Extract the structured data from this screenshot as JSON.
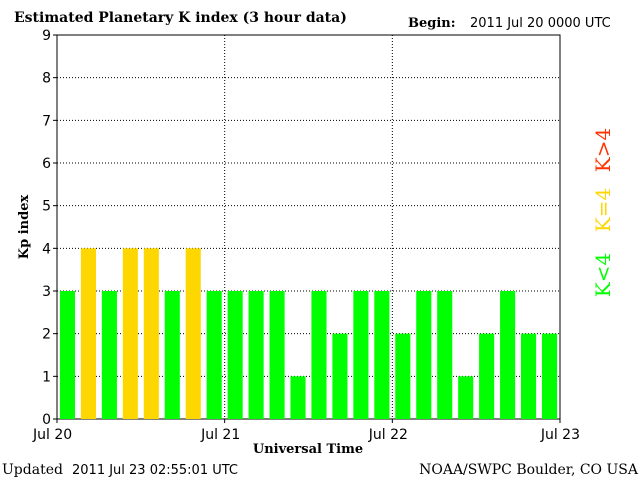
{
  "title": "Estimated Planetary K index (3 hour data)",
  "begin_label": "Begin:",
  "begin_value": "2011 Jul 20 0000 UTC",
  "updated_label": "Updated",
  "updated_value": "2011 Jul 23 02:55:01 UTC",
  "credit": "NOAA/SWPC Boulder, CO USA",
  "colors": {
    "green": "#00ff00",
    "yellow": "#ffd700",
    "red": "#ff3300",
    "grid": "#000000"
  },
  "chart_data": {
    "type": "bar",
    "title": "Estimated Planetary K index (3 hour data)",
    "xlabel": "Universal Time",
    "ylabel": "Kp index",
    "ylim": [
      0,
      9
    ],
    "yticks": [
      "0",
      "1",
      "2",
      "3",
      "4",
      "5",
      "6",
      "7",
      "8",
      "9"
    ],
    "xticks": [
      "Jul 20",
      "Jul 21",
      "Jul 22",
      "Jul 23"
    ],
    "grid": true,
    "values": [
      3,
      4,
      3,
      4,
      4,
      3,
      4,
      3,
      3,
      3,
      3,
      1,
      3,
      2,
      3,
      3,
      2,
      3,
      3,
      1,
      2,
      3,
      2,
      2
    ],
    "legend": [
      {
        "text": "K<4",
        "color": "#00ff00"
      },
      {
        "text": "K=4",
        "color": "#ffd700"
      },
      {
        "text": "K>4",
        "color": "#ff3300"
      }
    ]
  }
}
